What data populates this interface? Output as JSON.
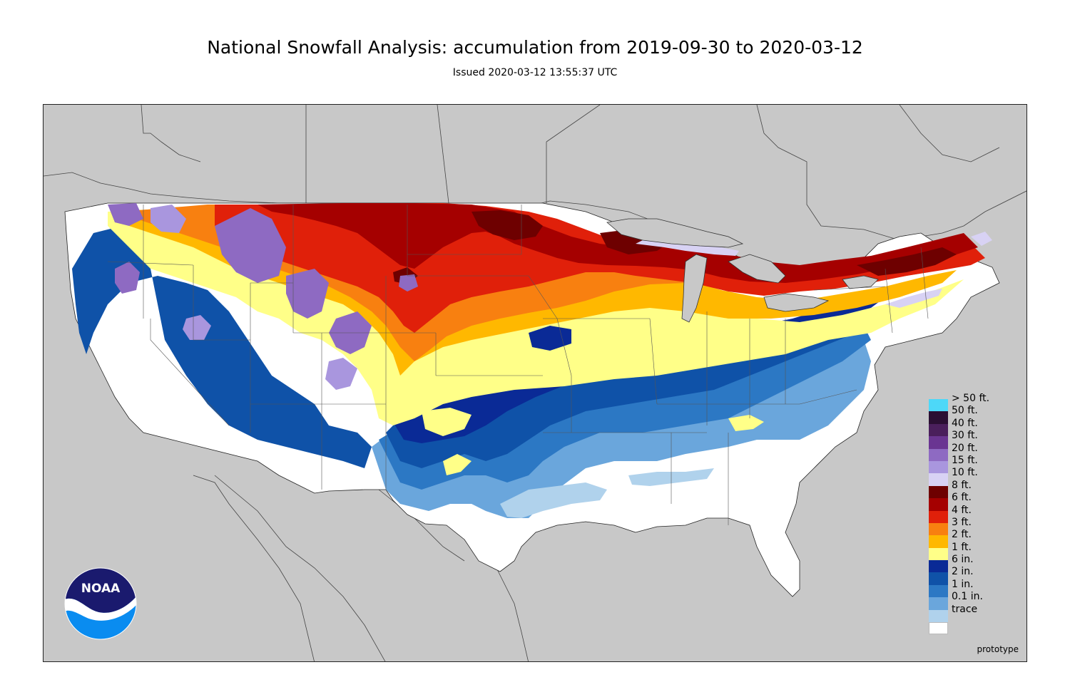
{
  "header": {
    "title": "National Snowfall Analysis: accumulation from 2019-09-30 to 2020-03-12",
    "issued": "Issued 2020-03-12 13:55:37 UTC"
  },
  "map": {
    "background_color": "#c8c8c8",
    "border_line_color": "#333333"
  },
  "logo": {
    "text": "NOAA",
    "top_color": "#1a1a6e",
    "bottom_color": "#0a8cf0"
  },
  "footer": {
    "note": "prototype"
  },
  "legend": {
    "items": [
      {
        "label": "> 50 ft.",
        "color": "#4dd8f8"
      },
      {
        "label": "50 ft.",
        "color": "#2a0f33"
      },
      {
        "label": "40 ft.",
        "color": "#4a1f5c"
      },
      {
        "label": "30 ft.",
        "color": "#6a3592"
      },
      {
        "label": "20 ft.",
        "color": "#8e6ac2"
      },
      {
        "label": "15 ft.",
        "color": "#a996de"
      },
      {
        "label": "10 ft.",
        "color": "#d8d2f4"
      },
      {
        "label": "8 ft.",
        "color": "#6e0000"
      },
      {
        "label": "6 ft.",
        "color": "#a50000"
      },
      {
        "label": "4 ft.",
        "color": "#e0200a"
      },
      {
        "label": "3 ft.",
        "color": "#f88010"
      },
      {
        "label": "2 ft.",
        "color": "#ffb800"
      },
      {
        "label": "1 ft.",
        "color": "#ffff88"
      },
      {
        "label": "6 in.",
        "color": "#0a2a96"
      },
      {
        "label": "2 in.",
        "color": "#0f52a8"
      },
      {
        "label": "1 in.",
        "color": "#2c78c4"
      },
      {
        "label": "0.1 in.",
        "color": "#6aa6dc"
      },
      {
        "label": "trace",
        "color": "#b0d2ec"
      },
      {
        "label": "",
        "color": "#ffffff"
      }
    ]
  }
}
